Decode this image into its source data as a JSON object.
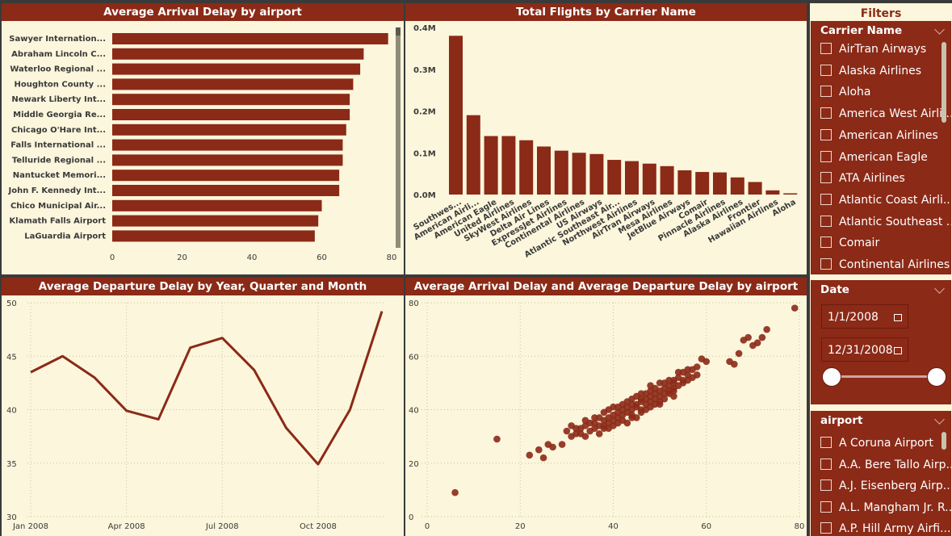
{
  "panels": {
    "arrival_by_airport_title": "Average Arrival Delay by airport",
    "flights_by_carrier_title": "Total Flights by Carrier Name",
    "departure_by_time_title": "Average Departure Delay by Year, Quarter and Month",
    "scatter_title": "Average Arrival Delay and Average Departure Delay by airport"
  },
  "filters": {
    "header": "Filters",
    "carrier": {
      "title": "Carrier Name",
      "items": [
        "AirTran Airways",
        "Alaska Airlines",
        "Aloha",
        "America West Airli...",
        "American Airlines",
        "American Eagle",
        "ATA Airlines",
        "Atlantic Coast Airli...",
        "Atlantic Southeast ...",
        "Comair",
        "Continental Airlines"
      ]
    },
    "date": {
      "title": "Date",
      "start": "1/1/2008",
      "end": "12/31/2008"
    },
    "airport": {
      "title": "airport",
      "items": [
        "A Coruna Airport",
        "A.A. Bere Tallo Airp...",
        "A.J. Eisenberg Airp...",
        "A.L. Mangham Jr. R...",
        "A.P. Hill Army Airfi..."
      ]
    }
  },
  "colors": {
    "accent": "#8b2a17",
    "background": "#fbf6dc",
    "title_text": "#ffffff"
  },
  "chart_data": [
    {
      "type": "bar",
      "orientation": "horizontal",
      "title": "Average Arrival Delay by airport",
      "categories": [
        "Sawyer Internation...",
        "Abraham Lincoln C...",
        "Waterloo Regional ...",
        "Houghton County ...",
        "Newark Liberty Int...",
        "Middle Georgia Re...",
        "Chicago O'Hare Int...",
        "Falls International ...",
        "Telluride Regional ...",
        "Nantucket Memori...",
        "John F. Kennedy Int...",
        "Chico Municipal Air...",
        "Klamath Falls Airport",
        "LaGuardia Airport"
      ],
      "values": [
        79,
        72,
        71,
        69,
        68,
        68,
        67,
        66,
        66,
        65,
        65,
        60,
        59,
        58
      ],
      "xticks": [
        "0",
        "20",
        "40",
        "60",
        "80"
      ],
      "xlim": [
        0,
        80
      ]
    },
    {
      "type": "bar",
      "title": "Total Flights by Carrier Name",
      "categories": [
        "Southwes...",
        "American Airli...",
        "American Eagle",
        "United Airlines",
        "SkyWest Airlines",
        "Delta Air Lines",
        "ExpressJet Airlines",
        "Continental Airlines",
        "US Airways",
        "Atlantic Southeast Air...",
        "Northwest Airlines",
        "AirTran Airways",
        "Mesa Airlines",
        "JetBlue Airways",
        "Comair",
        "Pinnacle Airlines",
        "Alaska Airlines",
        "Frontier",
        "Hawaiian Airlines",
        "Aloha"
      ],
      "values": [
        0.38,
        0.19,
        0.14,
        0.14,
        0.13,
        0.115,
        0.105,
        0.1,
        0.097,
        0.083,
        0.08,
        0.074,
        0.068,
        0.058,
        0.054,
        0.053,
        0.041,
        0.03,
        0.01,
        0.003
      ],
      "unit": "M",
      "yticks": [
        "0.0M",
        "0.1M",
        "0.2M",
        "0.3M",
        "0.4M"
      ],
      "ylim": [
        0,
        0.4
      ]
    },
    {
      "type": "line",
      "title": "Average Departure Delay by Year, Quarter and Month",
      "x": [
        "Jan 2008",
        "Feb 2008",
        "Mar 2008",
        "Apr 2008",
        "May 2008",
        "Jun 2008",
        "Jul 2008",
        "Aug 2008",
        "Sep 2008",
        "Oct 2008",
        "Nov 2008",
        "Dec 2008"
      ],
      "values": [
        43.5,
        45,
        43,
        39.9,
        39.1,
        45.8,
        46.7,
        43.7,
        38.3,
        34.9,
        40,
        49.2
      ],
      "xticks": [
        "Jan 2008",
        "Apr 2008",
        "Jul 2008",
        "Oct 2008"
      ],
      "yticks": [
        "30",
        "35",
        "40",
        "45",
        "50"
      ],
      "ylim": [
        30,
        50
      ]
    },
    {
      "type": "scatter",
      "title": "Average Arrival Delay and Average Departure Delay by airport",
      "xticks": [
        "0",
        "20",
        "40",
        "60",
        "80"
      ],
      "yticks": [
        "0",
        "20",
        "40",
        "60",
        "80"
      ],
      "xlim": [
        0,
        80
      ],
      "ylim": [
        0,
        80
      ],
      "points": [
        [
          6,
          9
        ],
        [
          15,
          29
        ],
        [
          22,
          23
        ],
        [
          24,
          25
        ],
        [
          25,
          22
        ],
        [
          26,
          27
        ],
        [
          27,
          26
        ],
        [
          29,
          27
        ],
        [
          30,
          32
        ],
        [
          31,
          30
        ],
        [
          32,
          33
        ],
        [
          33,
          31
        ],
        [
          34,
          30
        ],
        [
          34,
          34
        ],
        [
          35,
          32
        ],
        [
          36,
          33
        ],
        [
          36,
          35
        ],
        [
          37,
          34
        ],
        [
          37,
          31
        ],
        [
          38,
          36
        ],
        [
          38,
          34
        ],
        [
          39,
          35
        ],
        [
          39,
          37
        ],
        [
          40,
          36
        ],
        [
          40,
          38
        ],
        [
          41,
          37
        ],
        [
          41,
          39
        ],
        [
          42,
          38
        ],
        [
          42,
          36
        ],
        [
          43,
          39
        ],
        [
          43,
          41
        ],
        [
          44,
          40
        ],
        [
          44,
          38
        ],
        [
          45,
          41
        ],
        [
          45,
          42
        ],
        [
          46,
          40
        ],
        [
          46,
          43
        ],
        [
          47,
          42
        ],
        [
          47,
          44
        ],
        [
          48,
          43
        ],
        [
          48,
          45
        ],
        [
          49,
          44
        ],
        [
          49,
          46
        ],
        [
          50,
          45
        ],
        [
          50,
          47
        ],
        [
          51,
          46
        ],
        [
          51,
          48
        ],
        [
          52,
          47
        ],
        [
          52,
          49
        ],
        [
          53,
          48
        ],
        [
          53,
          50
        ],
        [
          54,
          49
        ],
        [
          54,
          52
        ],
        [
          55,
          51
        ],
        [
          55,
          54
        ],
        [
          56,
          53
        ],
        [
          57,
          55
        ],
        [
          58,
          56
        ],
        [
          59,
          59
        ],
        [
          38,
          33
        ],
        [
          40,
          41
        ],
        [
          42,
          42
        ],
        [
          44,
          44
        ],
        [
          46,
          46
        ],
        [
          48,
          47
        ],
        [
          50,
          43
        ],
        [
          52,
          51
        ],
        [
          54,
          54
        ],
        [
          56,
          55
        ],
        [
          37,
          37
        ],
        [
          39,
          33
        ],
        [
          41,
          35
        ],
        [
          43,
          35
        ],
        [
          45,
          37
        ],
        [
          47,
          40
        ],
        [
          49,
          42
        ],
        [
          51,
          44
        ],
        [
          53,
          45
        ],
        [
          55,
          50
        ],
        [
          57,
          52
        ],
        [
          35,
          35
        ],
        [
          33,
          33
        ],
        [
          36,
          37
        ],
        [
          45,
          45
        ],
        [
          58,
          53
        ],
        [
          60,
          58
        ],
        [
          65,
          58
        ],
        [
          66,
          57
        ],
        [
          67,
          61
        ],
        [
          68,
          66
        ],
        [
          69,
          67
        ],
        [
          70,
          64
        ],
        [
          71,
          65
        ],
        [
          72,
          67
        ],
        [
          73,
          70
        ],
        [
          79,
          78
        ],
        [
          42,
          40
        ],
        [
          44,
          37
        ],
        [
          46,
          39
        ],
        [
          48,
          41
        ],
        [
          50,
          42
        ],
        [
          52,
          46
        ],
        [
          41,
          41
        ],
        [
          43,
          43
        ],
        [
          47,
          46
        ],
        [
          49,
          48
        ],
        [
          51,
          50
        ],
        [
          53,
          51
        ],
        [
          38,
          39
        ],
        [
          40,
          34
        ],
        [
          34,
          36
        ],
        [
          32,
          31
        ],
        [
          31,
          34
        ],
        [
          39,
          40
        ],
        [
          44,
          42
        ],
        [
          46,
          44
        ],
        [
          48,
          49
        ],
        [
          50,
          50
        ],
        [
          56,
          51
        ],
        [
          53,
          47
        ]
      ]
    }
  ]
}
